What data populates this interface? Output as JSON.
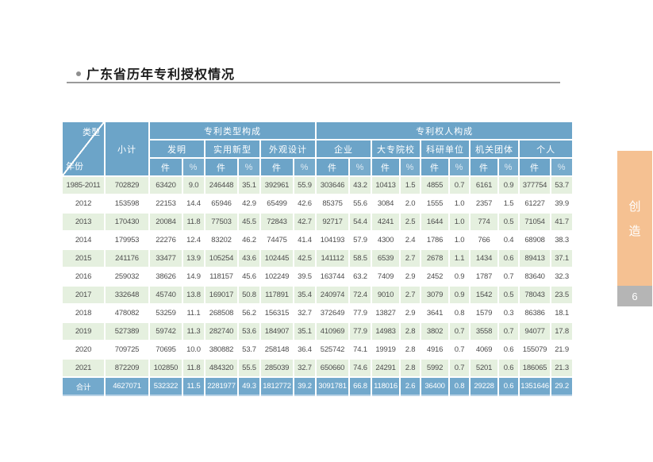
{
  "page": {
    "title": "广东省历年专利授权情况"
  },
  "sidebar": {
    "tab_chars": [
      "创",
      "造"
    ],
    "page_number": "6",
    "tab_color": "#F5C192",
    "pagebox_color": "#B5B5B5"
  },
  "table": {
    "corner": {
      "top": "类型",
      "bottom": "年份"
    },
    "subtotal": "小计",
    "groups": [
      {
        "label": "专利类型构成"
      },
      {
        "label": "专利权人构成"
      }
    ],
    "categories": [
      "发明",
      "实用新型",
      "外观设计",
      "企业",
      "大专院校",
      "科研单位",
      "机关团体",
      "个人"
    ],
    "units": {
      "count": "件",
      "percent": "%"
    },
    "rows": [
      {
        "year": "1985-2011",
        "cells": [
          "702829",
          "63420",
          "9.0",
          "246448",
          "35.1",
          "392961",
          "55.9",
          "303646",
          "43.2",
          "10413",
          "1.5",
          "4855",
          "0.7",
          "6161",
          "0.9",
          "377754",
          "53.7"
        ]
      },
      {
        "year": "2012",
        "cells": [
          "153598",
          "22153",
          "14.4",
          "65946",
          "42.9",
          "65499",
          "42.6",
          "85375",
          "55.6",
          "3084",
          "2.0",
          "1555",
          "1.0",
          "2357",
          "1.5",
          "61227",
          "39.9"
        ]
      },
      {
        "year": "2013",
        "cells": [
          "170430",
          "20084",
          "11.8",
          "77503",
          "45.5",
          "72843",
          "42.7",
          "92717",
          "54.4",
          "4241",
          "2.5",
          "1644",
          "1.0",
          "774",
          "0.5",
          "71054",
          "41.7"
        ]
      },
      {
        "year": "2014",
        "cells": [
          "179953",
          "22276",
          "12.4",
          "83202",
          "46.2",
          "74475",
          "41.4",
          "104193",
          "57.9",
          "4300",
          "2.4",
          "1786",
          "1.0",
          "766",
          "0.4",
          "68908",
          "38.3"
        ]
      },
      {
        "year": "2015",
        "cells": [
          "241176",
          "33477",
          "13.9",
          "105254",
          "43.6",
          "102445",
          "42.5",
          "141112",
          "58.5",
          "6539",
          "2.7",
          "2678",
          "1.1",
          "1434",
          "0.6",
          "89413",
          "37.1"
        ]
      },
      {
        "year": "2016",
        "cells": [
          "259032",
          "38626",
          "14.9",
          "118157",
          "45.6",
          "102249",
          "39.5",
          "163744",
          "63.2",
          "7409",
          "2.9",
          "2452",
          "0.9",
          "1787",
          "0.7",
          "83640",
          "32.3"
        ]
      },
      {
        "year": "2017",
        "cells": [
          "332648",
          "45740",
          "13.8",
          "169017",
          "50.8",
          "117891",
          "35.4",
          "240974",
          "72.4",
          "9010",
          "2.7",
          "3079",
          "0.9",
          "1542",
          "0.5",
          "78043",
          "23.5"
        ]
      },
      {
        "year": "2018",
        "cells": [
          "478082",
          "53259",
          "11.1",
          "268508",
          "56.2",
          "156315",
          "32.7",
          "372649",
          "77.9",
          "13827",
          "2.9",
          "3641",
          "0.8",
          "1579",
          "0.3",
          "86386",
          "18.1"
        ]
      },
      {
        "year": "2019",
        "cells": [
          "527389",
          "59742",
          "11.3",
          "282740",
          "53.6",
          "184907",
          "35.1",
          "410969",
          "77.9",
          "14983",
          "2.8",
          "3802",
          "0.7",
          "3558",
          "0.7",
          "94077",
          "17.8"
        ]
      },
      {
        "year": "2020",
        "cells": [
          "709725",
          "70695",
          "10.0",
          "380882",
          "53.7",
          "258148",
          "36.4",
          "525742",
          "74.1",
          "19919",
          "2.8",
          "4916",
          "0.7",
          "4069",
          "0.6",
          "155079",
          "21.9"
        ]
      },
      {
        "year": "2021",
        "cells": [
          "872209",
          "102850",
          "11.8",
          "484320",
          "55.5",
          "285039",
          "32.7",
          "650660",
          "74.6",
          "24291",
          "2.8",
          "5992",
          "0.7",
          "5201",
          "0.6",
          "186065",
          "21.3"
        ]
      }
    ],
    "total_row": {
      "year": "合计",
      "cells": [
        "4627071",
        "532322",
        "11.5",
        "2281977",
        "49.3",
        "1812772",
        "39.2",
        "3091781",
        "66.8",
        "118016",
        "2.6",
        "36400",
        "0.8",
        "29228",
        "0.6",
        "1351646",
        "29.2"
      ]
    },
    "colors": {
      "header_bg": "#6CA4C8",
      "total_bg": "#73A9CC",
      "row_alt": "#E5F0DF",
      "text": "#4D4D4D"
    }
  }
}
